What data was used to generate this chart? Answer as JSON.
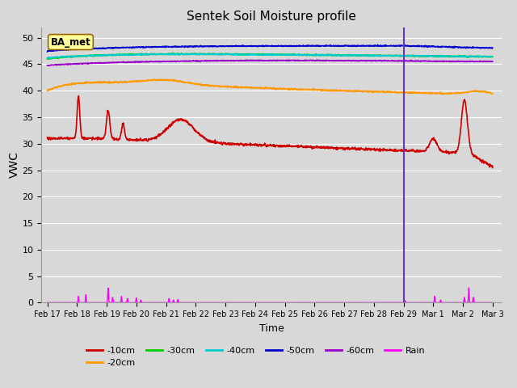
{
  "title": "Sentek Soil Moisture profile",
  "xlabel": "Time",
  "ylabel": "VWC",
  "legend_label": "BA_met",
  "ylim": [
    0,
    52
  ],
  "yticks": [
    0,
    5,
    10,
    15,
    20,
    25,
    30,
    35,
    40,
    45,
    50
  ],
  "line_colors": {
    "-10cm": "#cc0000",
    "-20cm": "#ff9900",
    "-30cm": "#00cc00",
    "-40cm": "#00cccc",
    "-50cm": "#0000cc",
    "-60cm": "#9900cc",
    "Rain": "#ff00ff"
  },
  "vline_x": 12.0,
  "vline_color": "#6633cc",
  "fig_bg_color": "#d8d8d8",
  "plot_bg_color": "#d8d8d8",
  "n_points": 1500,
  "tick_labels": [
    "Feb 17",
    "Feb 18",
    "Feb 19",
    "Feb 20",
    "Feb 21",
    "Feb 22",
    "Feb 23",
    "Feb 24",
    "Feb 25",
    "Feb 26",
    "Feb 27",
    "Feb 28",
    "Feb 29",
    "Mar 1",
    "Mar 2",
    "Mar 3"
  ]
}
